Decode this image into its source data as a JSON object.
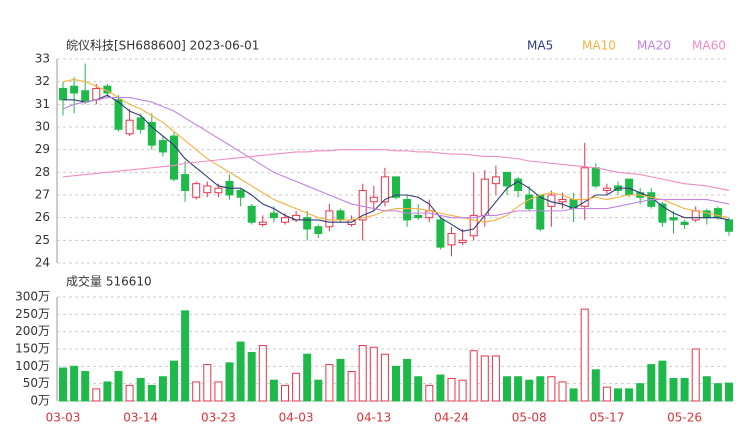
{
  "chart_data": [
    {
      "type": "candlestick",
      "title": "皖仪科技[SH688600] 2023-06-01",
      "ylim": [
        24,
        33
      ],
      "yticks": [
        24,
        25,
        26,
        27,
        28,
        29,
        30,
        31,
        32,
        33
      ],
      "grid": true,
      "up_color": "#e8344a",
      "down_color": "#1fb94a",
      "open": [
        31.7,
        31.8,
        31.6,
        31.2,
        31.8,
        31.2,
        29.7,
        30.4,
        30.2,
        29.4,
        29.6,
        27.9,
        26.9,
        27.1,
        27.1,
        27.6,
        27.2,
        26.5,
        25.7,
        26.2,
        25.8,
        25.9,
        26.0,
        25.6,
        25.6,
        26.3,
        25.7,
        25.9,
        26.7,
        26.7,
        27.8,
        26.8,
        26.1,
        26.0,
        25.9,
        24.8,
        24.9,
        25.2,
        26.1,
        27.5,
        28.0,
        27.7,
        27.0,
        27.0,
        26.5,
        26.7,
        26.8,
        26.5,
        28.2,
        27.2,
        27.4,
        27.7,
        27.1,
        27.1,
        26.6,
        26.0,
        25.8,
        25.9,
        26.3,
        26.4,
        25.9
      ],
      "high": [
        32.0,
        32.2,
        32.8,
        31.9,
        31.9,
        31.4,
        30.8,
        30.6,
        30.6,
        29.6,
        29.8,
        28.5,
        27.6,
        27.6,
        27.5,
        27.9,
        27.3,
        26.6,
        26.1,
        26.5,
        26.2,
        26.3,
        26.3,
        25.7,
        26.6,
        26.4,
        26.1,
        27.5,
        27.4,
        28.2,
        27.8,
        27.0,
        26.6,
        26.8,
        26.1,
        25.6,
        25.5,
        28.0,
        28.1,
        28.3,
        28.0,
        27.8,
        27.4,
        27.0,
        27.2,
        27.1,
        27.1,
        29.3,
        28.4,
        27.5,
        27.6,
        27.7,
        27.3,
        27.3,
        26.7,
        26.3,
        25.9,
        26.5,
        26.4,
        26.5,
        26.0
      ],
      "low": [
        30.5,
        30.6,
        31.0,
        31.0,
        31.3,
        29.8,
        29.6,
        29.7,
        29.0,
        28.7,
        27.6,
        26.7,
        26.8,
        26.9,
        26.9,
        26.8,
        26.5,
        25.7,
        25.6,
        25.8,
        25.7,
        25.8,
        25.0,
        25.1,
        25.4,
        25.8,
        25.6,
        25.0,
        26.3,
        26.5,
        26.8,
        25.6,
        25.9,
        25.8,
        24.6,
        24.3,
        24.8,
        25.0,
        25.6,
        27.0,
        27.0,
        26.9,
        26.3,
        25.4,
        25.6,
        26.4,
        25.8,
        25.9,
        27.3,
        27.0,
        27.0,
        26.9,
        26.6,
        26.4,
        25.6,
        25.3,
        25.5,
        25.8,
        25.7,
        25.9,
        25.2
      ],
      "close": [
        31.2,
        31.5,
        31.1,
        31.7,
        31.5,
        29.9,
        30.3,
        29.9,
        29.2,
        28.9,
        27.7,
        27.2,
        27.5,
        27.4,
        27.3,
        27.0,
        26.9,
        25.8,
        25.8,
        26.0,
        26.0,
        26.1,
        25.5,
        25.3,
        26.3,
        25.9,
        25.9,
        27.2,
        26.9,
        27.8,
        26.9,
        25.9,
        26.0,
        26.3,
        24.7,
        25.3,
        25.0,
        26.1,
        27.7,
        27.8,
        27.4,
        27.2,
        26.4,
        25.5,
        27.0,
        26.8,
        26.4,
        28.2,
        27.4,
        27.3,
        27.2,
        27.0,
        26.9,
        26.5,
        25.8,
        25.9,
        25.7,
        26.3,
        26.0,
        26.0,
        25.4
      ],
      "series": [
        {
          "name": "MA5",
          "color": "#2f3b78",
          "values": [
            31.2,
            31.2,
            31.1,
            31.2,
            31.4,
            31.1,
            30.7,
            30.5,
            30.0,
            29.6,
            29.2,
            28.6,
            28.2,
            27.8,
            27.4,
            27.3,
            27.3,
            27.0,
            26.6,
            26.4,
            26.1,
            25.9,
            25.9,
            25.9,
            25.8,
            25.8,
            25.8,
            26.1,
            26.3,
            26.8,
            27.0,
            27.0,
            26.9,
            26.6,
            26.0,
            25.7,
            25.4,
            25.5,
            26.1,
            26.7,
            27.3,
            27.6,
            27.3,
            26.9,
            26.7,
            26.6,
            26.4,
            26.7,
            27.0,
            27.0,
            27.3,
            27.3,
            27.1,
            26.9,
            26.5,
            26.2,
            26.0,
            26.0,
            26.0,
            26.0,
            25.9
          ]
        },
        {
          "name": "MA10",
          "color": "#f5b041",
          "values": [
            32.0,
            32.1,
            32.0,
            31.8,
            31.6,
            31.3,
            31.0,
            30.8,
            30.5,
            30.2,
            29.8,
            29.4,
            29.0,
            28.6,
            28.3,
            28.0,
            27.7,
            27.4,
            27.1,
            26.8,
            26.6,
            26.4,
            26.2,
            26.0,
            25.9,
            25.9,
            25.9,
            26.0,
            26.1,
            26.3,
            26.4,
            26.4,
            26.4,
            26.3,
            26.2,
            26.1,
            26.0,
            25.9,
            25.8,
            25.9,
            26.1,
            26.5,
            26.8,
            27.0,
            27.1,
            27.0,
            26.8,
            26.8,
            26.9,
            26.8,
            26.9,
            27.0,
            27.0,
            26.9,
            26.8,
            26.6,
            26.4,
            26.3,
            26.2,
            26.1,
            26.0
          ]
        },
        {
          "name": "MA20",
          "color": "#c084e0",
          "values": [
            30.8,
            31.0,
            31.1,
            31.2,
            31.3,
            31.3,
            31.3,
            31.2,
            31.1,
            30.9,
            30.7,
            30.4,
            30.1,
            29.8,
            29.5,
            29.2,
            28.9,
            28.6,
            28.3,
            28.0,
            27.8,
            27.6,
            27.4,
            27.2,
            27.0,
            26.8,
            26.6,
            26.5,
            26.4,
            26.3,
            26.3,
            26.2,
            26.2,
            26.2,
            26.1,
            26.0,
            26.0,
            26.0,
            26.1,
            26.1,
            26.2,
            26.3,
            26.3,
            26.3,
            26.3,
            26.3,
            26.4,
            26.4,
            26.4,
            26.4,
            26.5,
            26.6,
            26.7,
            26.8,
            26.8,
            26.8,
            26.8,
            26.8,
            26.8,
            26.7,
            26.6
          ]
        },
        {
          "name": "MA60",
          "color": "#f08cc4",
          "values": [
            27.8,
            27.85,
            27.9,
            27.95,
            28.0,
            28.05,
            28.1,
            28.15,
            28.2,
            28.25,
            28.3,
            28.4,
            28.45,
            28.5,
            28.55,
            28.6,
            28.65,
            28.7,
            28.75,
            28.8,
            28.85,
            28.9,
            28.9,
            28.95,
            28.95,
            29.0,
            29.0,
            29.0,
            29.0,
            29.0,
            28.95,
            28.95,
            28.9,
            28.9,
            28.85,
            28.8,
            28.8,
            28.75,
            28.7,
            28.7,
            28.65,
            28.6,
            28.5,
            28.45,
            28.4,
            28.35,
            28.3,
            28.25,
            28.2,
            28.1,
            28.0,
            27.95,
            27.9,
            27.8,
            27.7,
            27.6,
            27.5,
            27.45,
            27.4,
            27.3,
            27.2
          ]
        }
      ]
    },
    {
      "type": "bar",
      "title": "成交量 516610",
      "categories": [
        "03-03",
        null,
        null,
        null,
        null,
        null,
        null,
        "03-14",
        null,
        null,
        null,
        null,
        null,
        null,
        "03-23",
        null,
        null,
        null,
        null,
        null,
        null,
        "04-03",
        null,
        null,
        null,
        null,
        null,
        null,
        "04-13",
        null,
        null,
        null,
        null,
        null,
        null,
        "04-24",
        null,
        null,
        null,
        null,
        null,
        null,
        "05-08",
        null,
        null,
        null,
        null,
        null,
        null,
        "05-17",
        null,
        null,
        null,
        null,
        null,
        null,
        "05-26",
        null,
        null,
        null,
        null
      ],
      "values": [
        95,
        100,
        85,
        35,
        55,
        85,
        45,
        65,
        45,
        70,
        115,
        260,
        55,
        105,
        55,
        110,
        170,
        140,
        160,
        60,
        45,
        80,
        135,
        60,
        105,
        120,
        85,
        160,
        155,
        135,
        100,
        120,
        70,
        45,
        75,
        65,
        60,
        145,
        130,
        130,
        70,
        70,
        60,
        70,
        70,
        55,
        35,
        265,
        90,
        40,
        35,
        35,
        50,
        105,
        115,
        65,
        65,
        150,
        70,
        50,
        51.661
      ],
      "ylim": [
        0,
        300
      ],
      "yticks": [
        {
          "value": 0,
          "label": "0万"
        },
        {
          "value": 50,
          "label": "50万"
        },
        {
          "value": 100,
          "label": "100万"
        },
        {
          "value": 150,
          "label": "150万"
        },
        {
          "value": 200,
          "label": "200万"
        },
        {
          "value": 250,
          "label": "250万"
        },
        {
          "value": 300,
          "label": "300万"
        }
      ],
      "grid": true
    }
  ]
}
